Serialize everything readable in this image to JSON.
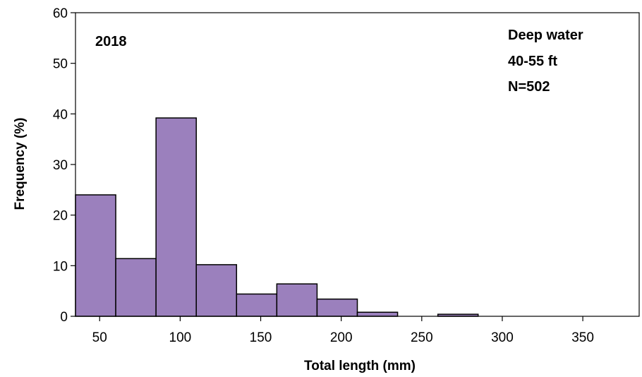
{
  "chart_data": {
    "type": "bar",
    "xlabel": "Total length (mm)",
    "ylabel": "Frequency (%)",
    "xlim": [
      35,
      385
    ],
    "ylim": [
      0,
      60
    ],
    "x_ticks": [
      50,
      100,
      150,
      200,
      250,
      300,
      350
    ],
    "y_ticks": [
      0,
      10,
      20,
      30,
      40,
      50,
      60
    ],
    "bin_width": 25,
    "bins": [
      {
        "start": 35,
        "end": 60,
        "value": 24.0
      },
      {
        "start": 60,
        "end": 85,
        "value": 11.4
      },
      {
        "start": 85,
        "end": 110,
        "value": 39.2
      },
      {
        "start": 110,
        "end": 135,
        "value": 10.2
      },
      {
        "start": 135,
        "end": 160,
        "value": 4.4
      },
      {
        "start": 160,
        "end": 185,
        "value": 6.4
      },
      {
        "start": 185,
        "end": 210,
        "value": 3.4
      },
      {
        "start": 210,
        "end": 235,
        "value": 0.8
      },
      {
        "start": 260,
        "end": 285,
        "value": 0.4
      }
    ],
    "bar_color": "#9b80bd",
    "bar_edge_color": "#000000",
    "grid": false,
    "annotations": {
      "year": "2018",
      "site_lines": [
        "Deep water",
        "40-55 ft",
        "N=502"
      ]
    }
  }
}
